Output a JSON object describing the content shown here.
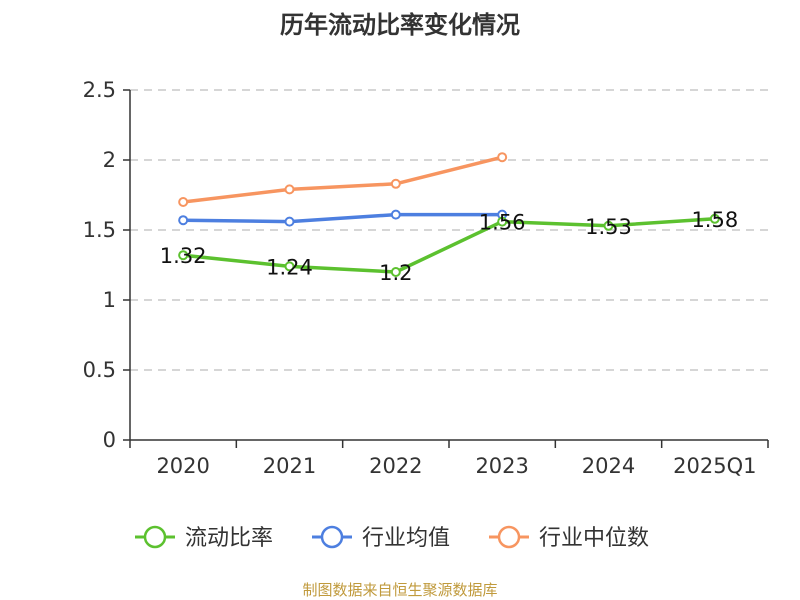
{
  "chart_data": {
    "type": "line",
    "title": "历年流动比率变化情况",
    "categories": [
      "2020",
      "2021",
      "2022",
      "2023",
      "2024",
      "2025Q1"
    ],
    "ylim": [
      0,
      2.5
    ],
    "yticks": [
      "0",
      "0.5",
      "1",
      "1.5",
      "2",
      "2.5"
    ],
    "grid": true,
    "legend_position": "bottom",
    "series": [
      {
        "name": "流动比率",
        "color": "#5cc12f",
        "values": [
          1.32,
          1.24,
          1.2,
          1.56,
          1.53,
          1.58
        ],
        "labels": [
          "1.32",
          "1.24",
          "1.2",
          "1.56",
          "1.53",
          "1.58"
        ]
      },
      {
        "name": "行业均值",
        "color": "#4d7fe0",
        "values": [
          1.57,
          1.56,
          1.61,
          1.61,
          null,
          null
        ]
      },
      {
        "name": "行业中位数",
        "color": "#f79560",
        "values": [
          1.7,
          1.79,
          1.83,
          2.02,
          null,
          null
        ]
      }
    ],
    "source": "制图数据来自恒生聚源数据库"
  }
}
